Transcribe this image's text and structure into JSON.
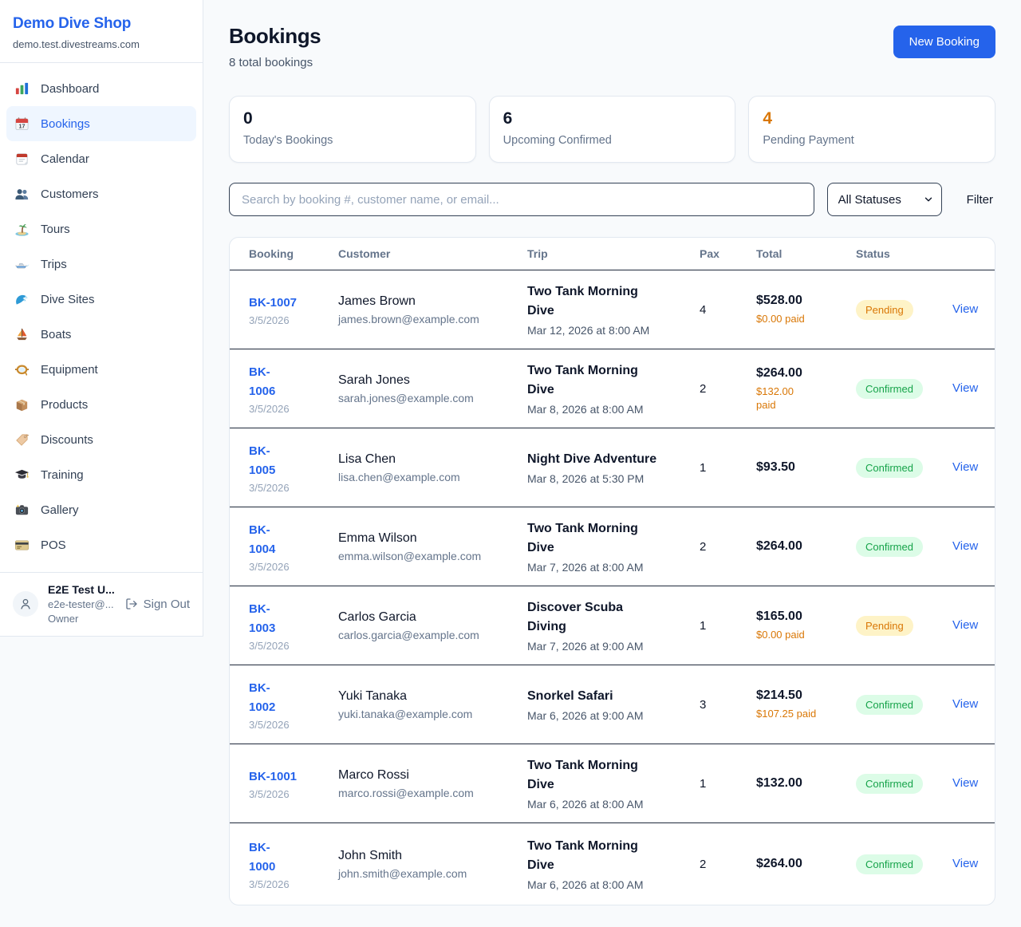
{
  "theme": {
    "accent": "#2563eb",
    "orange": "#d97706",
    "green": "#16a34a",
    "pending_bg": "#fef3c7",
    "confirmed_bg": "#dcfce7",
    "page_bg": "#f8fafc"
  },
  "sidebar": {
    "title": "Demo Dive Shop",
    "domain": "demo.test.divestreams.com",
    "items": [
      {
        "label": "Dashboard",
        "icon": "bar-chart",
        "active": false
      },
      {
        "label": "Bookings",
        "icon": "calendar-date",
        "active": true
      },
      {
        "label": "Calendar",
        "icon": "calendar-pad",
        "active": false
      },
      {
        "label": "Customers",
        "icon": "people",
        "active": false
      },
      {
        "label": "Tours",
        "icon": "island",
        "active": false
      },
      {
        "label": "Trips",
        "icon": "speedboat",
        "active": false
      },
      {
        "label": "Dive Sites",
        "icon": "wave",
        "active": false
      },
      {
        "label": "Boats",
        "icon": "sailboat",
        "active": false
      },
      {
        "label": "Equipment",
        "icon": "dive-mask",
        "active": false
      },
      {
        "label": "Products",
        "icon": "package",
        "active": false
      },
      {
        "label": "Discounts",
        "icon": "tag",
        "active": false
      },
      {
        "label": "Training",
        "icon": "graduation-cap",
        "active": false
      },
      {
        "label": "Gallery",
        "icon": "camera",
        "active": false
      },
      {
        "label": "POS",
        "icon": "credit-card",
        "active": false
      }
    ],
    "user": {
      "name": "E2E Test U...",
      "email": "e2e-tester@...",
      "role": "Owner",
      "signout_label": "Sign Out"
    }
  },
  "header": {
    "title": "Bookings",
    "subtitle": "8 total bookings",
    "new_booking_label": "New Booking"
  },
  "stats": [
    {
      "value": "0",
      "label": "Today's Bookings",
      "color": "#0f172a"
    },
    {
      "value": "6",
      "label": "Upcoming Confirmed",
      "color": "#0f172a"
    },
    {
      "value": "4",
      "label": "Pending Payment",
      "color": "#d97706"
    }
  ],
  "filters": {
    "search_placeholder": "Search by booking #, customer name, or email...",
    "status_selected": "All Statuses",
    "filter_label": "Filter"
  },
  "table": {
    "columns": [
      "Booking",
      "Customer",
      "Trip",
      "Pax",
      "Total",
      "Status"
    ],
    "rows": [
      {
        "id": "BK-1007",
        "date": "3/5/2026",
        "customer": "James Brown",
        "email": "james.brown@example.com",
        "trip": "Two Tank Morning\nDive",
        "trip_time": "Mar 12, 2026 at 8:00 AM",
        "pax": "4",
        "total": "$528.00",
        "paid": "$0.00 paid",
        "status": "Pending",
        "action": "View"
      },
      {
        "id": "BK-\n1006",
        "date": "3/5/2026",
        "customer": "Sarah Jones",
        "email": "sarah.jones@example.com",
        "trip": "Two Tank Morning\nDive",
        "trip_time": "Mar 8, 2026 at 8:00 AM",
        "pax": "2",
        "total": "$264.00",
        "paid": "$132.00\npaid",
        "status": "Confirmed",
        "action": "View"
      },
      {
        "id": "BK-\n1005",
        "date": "3/5/2026",
        "customer": "Lisa Chen",
        "email": "lisa.chen@example.com",
        "trip": "Night Dive Adventure",
        "trip_time": "Mar 8, 2026 at 5:30 PM",
        "pax": "1",
        "total": "$93.50",
        "paid": null,
        "status": "Confirmed",
        "action": "View"
      },
      {
        "id": "BK-\n1004",
        "date": "3/5/2026",
        "customer": "Emma Wilson",
        "email": "emma.wilson@example.com",
        "trip": "Two Tank Morning\nDive",
        "trip_time": "Mar 7, 2026 at 8:00 AM",
        "pax": "2",
        "total": "$264.00",
        "paid": null,
        "status": "Confirmed",
        "action": "View"
      },
      {
        "id": "BK-\n1003",
        "date": "3/5/2026",
        "customer": "Carlos Garcia",
        "email": "carlos.garcia@example.com",
        "trip": "Discover Scuba\nDiving",
        "trip_time": "Mar 7, 2026 at 9:00 AM",
        "pax": "1",
        "total": "$165.00",
        "paid": "$0.00 paid",
        "status": "Pending",
        "action": "View"
      },
      {
        "id": "BK-\n1002",
        "date": "3/5/2026",
        "customer": "Yuki Tanaka",
        "email": "yuki.tanaka@example.com",
        "trip": "Snorkel Safari",
        "trip_time": "Mar 6, 2026 at 9:00 AM",
        "pax": "3",
        "total": "$214.50",
        "paid": "$107.25 paid",
        "status": "Confirmed",
        "action": "View"
      },
      {
        "id": "BK-1001",
        "date": "3/5/2026",
        "customer": "Marco Rossi",
        "email": "marco.rossi@example.com",
        "trip": "Two Tank Morning\nDive",
        "trip_time": "Mar 6, 2026 at 8:00 AM",
        "pax": "1",
        "total": "$132.00",
        "paid": null,
        "status": "Confirmed",
        "action": "View"
      },
      {
        "id": "BK-\n1000",
        "date": "3/5/2026",
        "customer": "John Smith",
        "email": "john.smith@example.com",
        "trip": "Two Tank Morning\nDive",
        "trip_time": "Mar 6, 2026 at 8:00 AM",
        "pax": "2",
        "total": "$264.00",
        "paid": null,
        "status": "Confirmed",
        "action": "View"
      }
    ]
  }
}
